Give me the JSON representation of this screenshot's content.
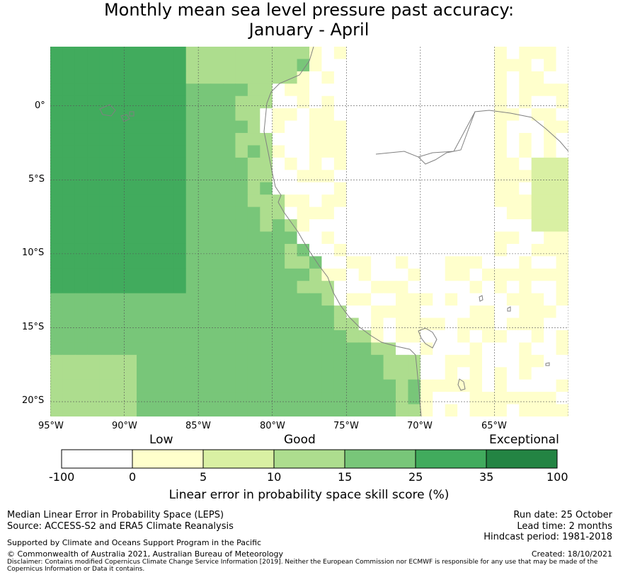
{
  "title": {
    "line1": "Monthly mean sea level pressure past accuracy:",
    "line2": "January - April"
  },
  "map": {
    "lat_labels": [
      "0°",
      "5°S",
      "10°S",
      "15°S",
      "20°S"
    ],
    "lon_labels": [
      "95°W",
      "90°W",
      "85°W",
      "80°W",
      "75°W",
      "70°W",
      "65°W"
    ],
    "extent": {
      "lon_min": -95,
      "lon_max": -60,
      "lat_min": -21,
      "lat_max": 4
    },
    "colors": {
      "c0": "#ffffff",
      "c1": "#ffffcc",
      "c2": "#d9f0a3",
      "c3": "#addd8e",
      "c4": "#78c679",
      "c5": "#41ab5d",
      "c6": "#238443",
      "coast": "#808080",
      "grid": "#555555"
    }
  },
  "colorbar": {
    "categories": [
      "Low",
      "Good",
      "Exceptional"
    ],
    "ticks": [
      "-100",
      "0",
      "5",
      "10",
      "15",
      "25",
      "35",
      "100"
    ],
    "title": "Linear error in probability space skill score (%)"
  },
  "footer": {
    "left1": "Median Linear Error in Probability Space (LEPS)",
    "left2": "Source: ACCESS-S2 and ERA5 Climate Reanalysis",
    "left3": "Supported by Climate and Oceans Support Program in the Pacific",
    "left4": "© Commonwealth of Australia 2021, Australian Bureau of Meteorology",
    "right1": "Run date: 25 October",
    "right2": "Lead time: 2 months",
    "right3": "Hindcast period: 1981-2018",
    "right4": "Created: 18/10/2021",
    "disclaimer": "Disclaimer: Contains modified Copernicus Climate Change Service Information [2019]. Neither the European Commission nor ECMWF is responsible for any use that may be made of the Copernicus Information or Data it contains."
  }
}
